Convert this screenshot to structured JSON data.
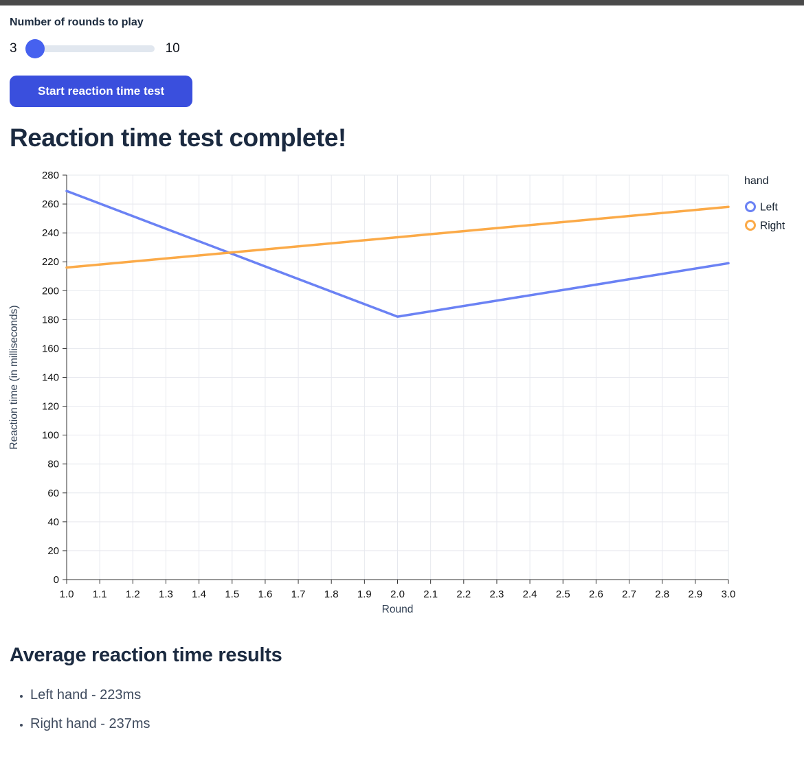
{
  "window": {
    "topbar_color": "#4a4a4a",
    "background_color": "#ffffff"
  },
  "slider": {
    "label": "Number of rounds to play",
    "min_label": "3",
    "max_label": "10",
    "current_value": 3,
    "thumb_color": "#4661ef",
    "track_color": "#e1e7ef"
  },
  "button": {
    "label": "Start reaction time test",
    "background_color": "#3a4fdd",
    "text_color": "#ffffff"
  },
  "headings": {
    "main": "Reaction time test complete!",
    "results": "Average reaction time results"
  },
  "results": {
    "items": [
      "Left hand - 223ms",
      "Right hand - 237ms"
    ]
  },
  "chart_data": {
    "type": "line",
    "x": [
      1.0,
      2.0,
      3.0
    ],
    "series": [
      {
        "name": "Left",
        "color": "#6b82f4",
        "values": [
          269,
          182,
          219
        ]
      },
      {
        "name": "Right",
        "color": "#fbaa48",
        "values": [
          216,
          237,
          258
        ]
      }
    ],
    "title": "",
    "xlabel": "Round",
    "ylabel": "Reaction time (in milliseconds)",
    "xlim": [
      1.0,
      3.0
    ],
    "ylim": [
      0,
      280
    ],
    "x_tick_step": 0.1,
    "y_tick_step": 20,
    "x_tick_format_decimals": 1,
    "grid": true,
    "legend_title": "hand",
    "legend_position": "right",
    "gridline_color": "#e6e8ee",
    "axis_line_color": "#333333"
  }
}
